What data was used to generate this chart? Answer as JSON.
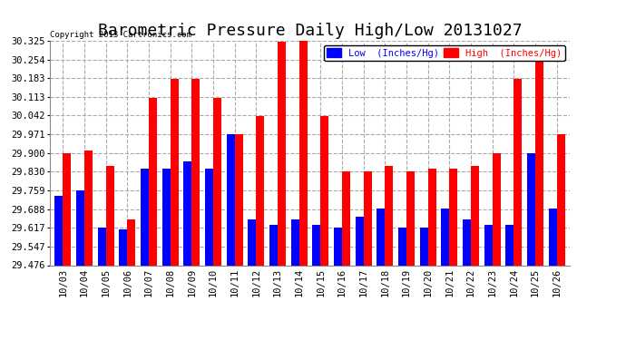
{
  "title": "Barometric Pressure Daily High/Low 20131027",
  "copyright": "Copyright 2013 Cartronics.com",
  "legend_low": "Low  (Inches/Hg)",
  "legend_high": "High  (Inches/Hg)",
  "dates": [
    "10/03",
    "10/04",
    "10/05",
    "10/06",
    "10/07",
    "10/08",
    "10/09",
    "10/10",
    "10/11",
    "10/12",
    "10/13",
    "10/14",
    "10/15",
    "10/16",
    "10/17",
    "10/18",
    "10/19",
    "10/20",
    "10/21",
    "10/22",
    "10/23",
    "10/24",
    "10/25",
    "10/26"
  ],
  "low": [
    29.74,
    29.76,
    29.62,
    29.61,
    29.84,
    29.84,
    29.87,
    29.84,
    29.97,
    29.65,
    29.63,
    29.65,
    29.63,
    29.62,
    29.66,
    29.69,
    29.62,
    29.62,
    29.69,
    29.65,
    29.63,
    29.63,
    29.9,
    29.69
  ],
  "high": [
    29.9,
    29.91,
    29.85,
    29.65,
    30.11,
    30.18,
    30.18,
    30.11,
    29.97,
    30.04,
    30.32,
    30.33,
    30.04,
    29.83,
    29.83,
    29.85,
    29.83,
    29.84,
    29.84,
    29.85,
    29.9,
    30.18,
    30.27,
    29.97
  ],
  "low_color": "#0000ff",
  "high_color": "#ff0000",
  "bg_color": "#ffffff",
  "ylim_min": 29.476,
  "ylim_max": 30.325,
  "yticks": [
    29.476,
    29.547,
    29.617,
    29.688,
    29.759,
    29.83,
    29.9,
    29.971,
    30.042,
    30.113,
    30.183,
    30.254,
    30.325
  ],
  "title_fontsize": 13,
  "axis_bg_color": "#ffffff",
  "grid_color": "#aaaaaa",
  "bar_width": 0.38
}
